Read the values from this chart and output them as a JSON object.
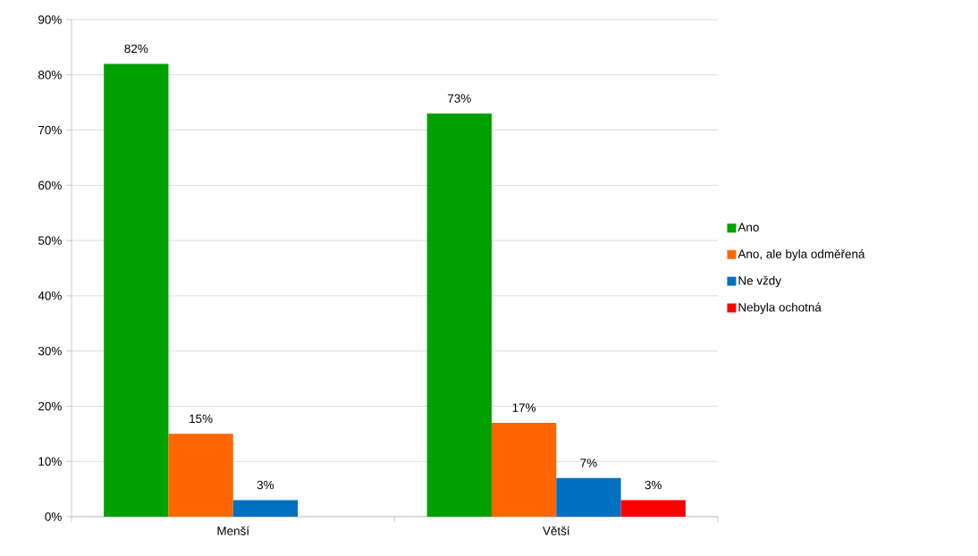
{
  "chart_data": {
    "type": "bar",
    "categories": [
      "Menší",
      "Větší"
    ],
    "series": [
      {
        "name": "Ano",
        "color": "#00a000",
        "values": [
          82,
          73
        ],
        "value_labels": [
          "82%",
          "73%"
        ]
      },
      {
        "name": "Ano, ale byla odměřená",
        "color": "#ff6600",
        "values": [
          15,
          17
        ],
        "value_labels": [
          "15%",
          "17%"
        ]
      },
      {
        "name": "Ne vždy",
        "color": "#0070c0",
        "values": [
          3,
          7
        ],
        "value_labels": [
          "3%",
          "7%"
        ]
      },
      {
        "name": "Nebyla ochotná",
        "color": "#ff0000",
        "values": [
          null,
          3
        ],
        "value_labels": [
          null,
          "3%"
        ]
      }
    ],
    "ylim": [
      0,
      90
    ],
    "yticks": [
      {
        "value": 0,
        "label": "0%"
      },
      {
        "value": 10,
        "label": "10%"
      },
      {
        "value": 20,
        "label": "20%"
      },
      {
        "value": 30,
        "label": "30%"
      },
      {
        "value": 40,
        "label": "40%"
      },
      {
        "value": 50,
        "label": "50%"
      },
      {
        "value": 60,
        "label": "60%"
      },
      {
        "value": 70,
        "label": "70%"
      },
      {
        "value": 80,
        "label": "80%"
      },
      {
        "value": 90,
        "label": "90%"
      }
    ],
    "grid": "y",
    "legend": "right"
  }
}
